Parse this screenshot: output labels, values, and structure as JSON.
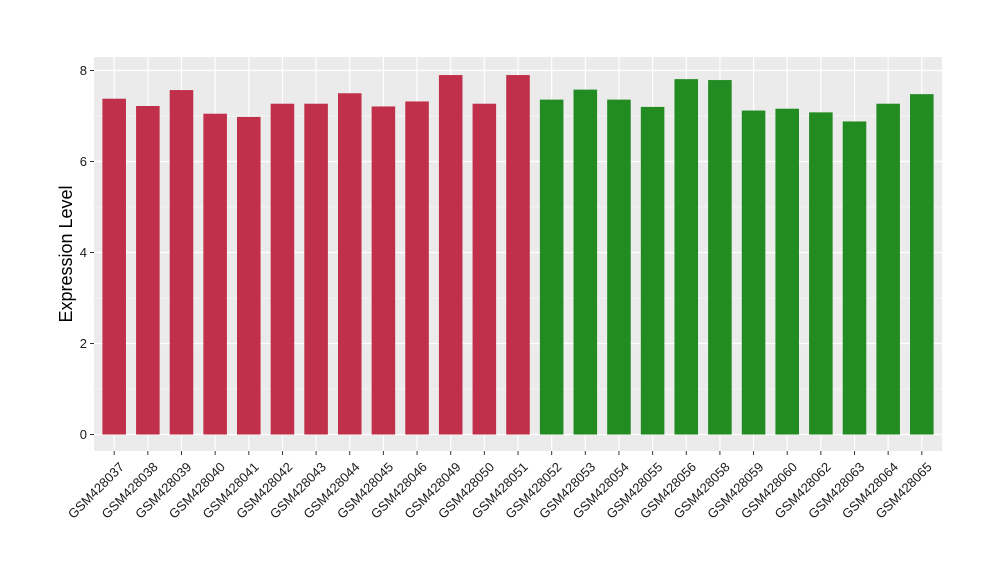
{
  "chart_data": {
    "type": "bar",
    "ylabel": "Expression Level",
    "xlabel": "",
    "ylim": [
      0,
      8.25
    ],
    "yticks": [
      0,
      2,
      4,
      6,
      8
    ],
    "grid": true,
    "colors": {
      "group1": "#c0304a",
      "group2": "#228b22",
      "panel": "#ebebeb",
      "grid": "#ffffff"
    },
    "categories": [
      "GSM428037",
      "GSM428038",
      "GSM428039",
      "GSM428040",
      "GSM428041",
      "GSM428042",
      "GSM428043",
      "GSM428044",
      "GSM428045",
      "GSM428046",
      "GSM428049",
      "GSM428050",
      "GSM428051",
      "GSM428052",
      "GSM428053",
      "GSM428054",
      "GSM428055",
      "GSM428056",
      "GSM428058",
      "GSM428059",
      "GSM428060",
      "GSM428062",
      "GSM428063",
      "GSM428064",
      "GSM428065"
    ],
    "values": [
      7.38,
      7.22,
      7.57,
      7.05,
      6.98,
      7.27,
      7.27,
      7.5,
      7.21,
      7.32,
      7.9,
      7.27,
      7.9,
      7.36,
      7.58,
      7.36,
      7.2,
      7.81,
      7.79,
      7.12,
      7.16,
      7.08,
      6.88,
      7.27,
      7.48
    ],
    "groups": [
      1,
      1,
      1,
      1,
      1,
      1,
      1,
      1,
      1,
      1,
      1,
      1,
      1,
      2,
      2,
      2,
      2,
      2,
      2,
      2,
      2,
      2,
      2,
      2,
      2
    ]
  }
}
